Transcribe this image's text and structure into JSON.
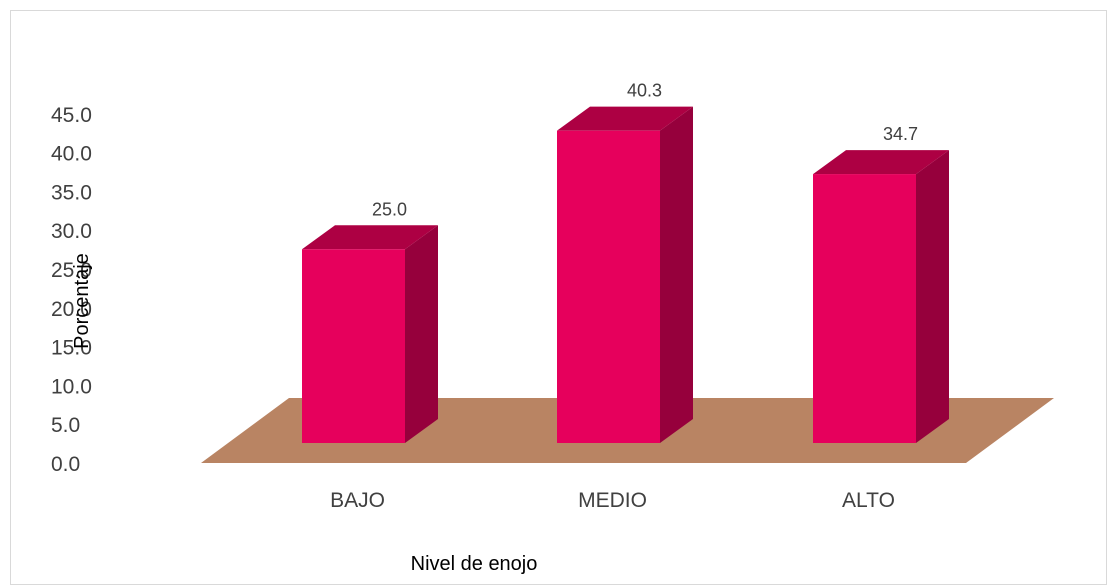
{
  "chart_data": {
    "type": "bar",
    "categories": [
      "BAJO",
      "MEDIO",
      "ALTO"
    ],
    "values": [
      25.0,
      40.3,
      34.7
    ],
    "data_labels": [
      "25.0",
      "40.3",
      "34.7"
    ],
    "title": "",
    "xlabel": "Nivel de enojo",
    "ylabel": "Porcentaje",
    "ylim": [
      0,
      45
    ],
    "yticks": [
      "0.0",
      "5.0",
      "10.0",
      "15.0",
      "20.0",
      "25.0",
      "30.0",
      "35.0",
      "40.0",
      "45.0"
    ],
    "grid": false,
    "legend": "none",
    "style": "3d-column",
    "colors": {
      "bar_front": "#e6005c",
      "bar_top": "#ad0043",
      "bar_side": "#96003c",
      "floor": "#b98463"
    }
  }
}
